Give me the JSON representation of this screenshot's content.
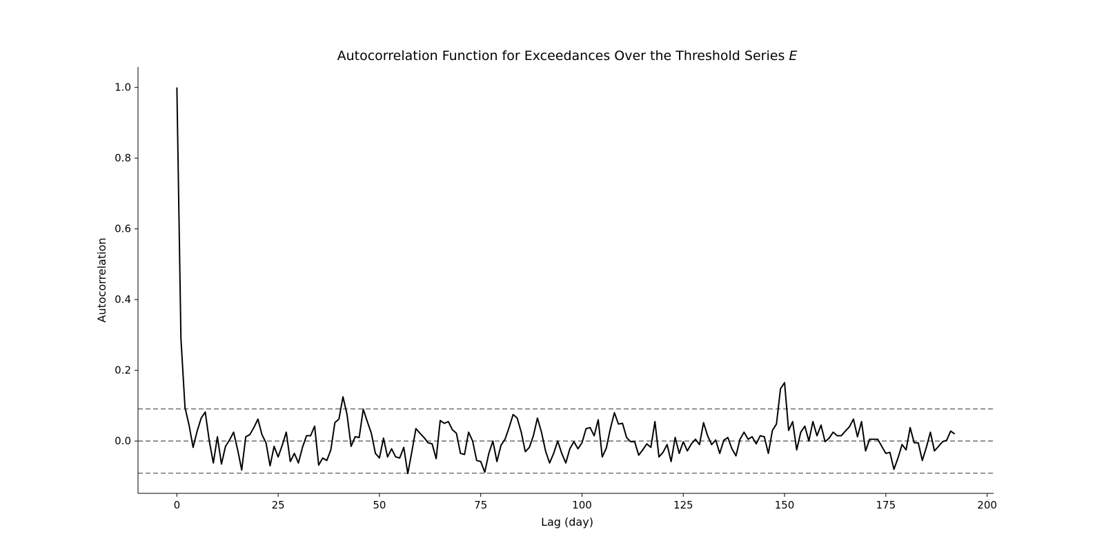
{
  "chart_data": {
    "type": "line",
    "title": "Autocorrelation Function for Exceedances Over the Threshold Series ",
    "title_italic": "E",
    "xlabel": "Lag (day)",
    "ylabel": "Autocorrelation",
    "xlim": [
      -9.6,
      201.6
    ],
    "ylim": [
      -0.148,
      1.058
    ],
    "xticks": [
      0,
      25,
      50,
      75,
      100,
      125,
      150,
      175,
      200
    ],
    "yticks": [
      0.0,
      0.2,
      0.4,
      0.6,
      0.8,
      1.0
    ],
    "xtick_labels": [
      "0",
      "25",
      "50",
      "75",
      "100",
      "125",
      "150",
      "175",
      "200"
    ],
    "ytick_labels": [
      "0.0",
      "0.2",
      "0.4",
      "0.6",
      "0.8",
      "1.0"
    ],
    "grid": false,
    "reference_lines": [
      {
        "y": 0.0909,
        "style": "dashed",
        "color": "#777777"
      },
      {
        "y": 0.0,
        "style": "dashed",
        "color": "#777777"
      },
      {
        "y": -0.0909,
        "style": "dashed",
        "color": "#777777"
      }
    ],
    "series": [
      {
        "color": "#000000",
        "x": [
          0,
          1,
          2,
          3,
          4,
          5,
          6,
          7,
          8,
          9,
          10,
          11,
          12,
          13,
          14,
          15,
          16,
          17,
          18,
          19,
          20,
          21,
          22,
          23,
          24,
          25,
          26,
          27,
          28,
          29,
          30,
          31,
          32,
          33,
          34,
          35,
          36,
          37,
          38,
          39,
          40,
          41,
          42,
          43,
          44,
          45,
          46,
          47,
          48,
          49,
          50,
          51,
          52,
          53,
          54,
          55,
          56,
          57,
          58,
          59,
          60,
          61,
          62,
          63,
          64,
          65,
          66,
          67,
          68,
          69,
          70,
          71,
          72,
          73,
          74,
          75,
          76,
          77,
          78,
          79,
          80,
          81,
          82,
          83,
          84,
          85,
          86,
          87,
          88,
          89,
          90,
          91,
          92,
          93,
          94,
          95,
          96,
          97,
          98,
          99,
          100,
          101,
          102,
          103,
          104,
          105,
          106,
          107,
          108,
          109,
          110,
          111,
          112,
          113,
          114,
          115,
          116,
          117,
          118,
          119,
          120,
          121,
          122,
          123,
          124,
          125,
          126,
          127,
          128,
          129,
          130,
          131,
          132,
          133,
          134,
          135,
          136,
          137,
          138,
          139,
          140,
          141,
          142,
          143,
          144,
          145,
          146,
          147,
          148,
          149,
          150,
          151,
          152,
          153,
          154,
          155,
          156,
          157,
          158,
          159,
          160,
          161,
          162,
          163,
          164,
          165,
          166,
          167,
          168,
          169,
          170,
          171,
          172,
          173,
          174,
          175,
          176,
          177,
          178,
          179,
          180,
          181,
          182,
          183,
          184,
          185,
          186,
          187,
          188,
          189,
          190,
          191,
          192
        ],
        "y": [
          1.0,
          0.29,
          0.095,
          0.045,
          -0.018,
          0.028,
          0.065,
          0.082,
          0.0,
          -0.062,
          0.012,
          -0.065,
          -0.015,
          0.003,
          0.025,
          -0.025,
          -0.082,
          0.012,
          0.018,
          0.038,
          0.062,
          0.018,
          -0.005,
          -0.07,
          -0.015,
          -0.045,
          -0.012,
          0.025,
          -0.058,
          -0.035,
          -0.062,
          -0.018,
          0.015,
          0.015,
          0.042,
          -0.068,
          -0.048,
          -0.055,
          -0.025,
          0.052,
          0.062,
          0.125,
          0.075,
          -0.015,
          0.012,
          0.01,
          0.09,
          0.055,
          0.022,
          -0.035,
          -0.048,
          0.008,
          -0.045,
          -0.022,
          -0.045,
          -0.048,
          -0.018,
          -0.092,
          -0.03,
          0.035,
          0.022,
          0.01,
          -0.005,
          -0.008,
          -0.05,
          0.058,
          0.05,
          0.055,
          0.032,
          0.022,
          -0.035,
          -0.038,
          0.025,
          0.0,
          -0.055,
          -0.058,
          -0.088,
          -0.035,
          0.0,
          -0.058,
          -0.012,
          0.005,
          0.038,
          0.075,
          0.065,
          0.025,
          -0.03,
          -0.018,
          0.015,
          0.065,
          0.025,
          -0.028,
          -0.062,
          -0.035,
          0.0,
          -0.035,
          -0.062,
          -0.022,
          -0.002,
          -0.022,
          -0.005,
          0.035,
          0.038,
          0.015,
          0.06,
          -0.045,
          -0.02,
          0.035,
          0.08,
          0.048,
          0.05,
          0.01,
          -0.002,
          -0.002,
          -0.04,
          -0.025,
          -0.008,
          -0.018,
          0.055,
          -0.045,
          -0.032,
          -0.01,
          -0.058,
          0.01,
          -0.035,
          -0.002,
          -0.028,
          -0.008,
          0.005,
          -0.01,
          0.052,
          0.015,
          -0.01,
          0.003,
          -0.035,
          0.002,
          0.01,
          -0.022,
          -0.042,
          0.005,
          0.025,
          0.005,
          0.012,
          -0.008,
          0.015,
          0.012,
          -0.035,
          0.03,
          0.048,
          0.148,
          0.165,
          0.03,
          0.055,
          -0.025,
          0.025,
          0.042,
          0.0,
          0.055,
          0.015,
          0.045,
          -0.002,
          0.008,
          0.025,
          0.015,
          0.015,
          0.028,
          0.04,
          0.062,
          0.012,
          0.055,
          -0.028,
          0.005,
          0.005,
          0.005,
          -0.015,
          -0.035,
          -0.032,
          -0.08,
          -0.048,
          -0.01,
          -0.025,
          0.038,
          -0.005,
          -0.005,
          -0.055,
          -0.018,
          0.025,
          -0.028,
          -0.015,
          -0.002,
          0.002,
          0.028,
          0.02
        ]
      }
    ]
  }
}
